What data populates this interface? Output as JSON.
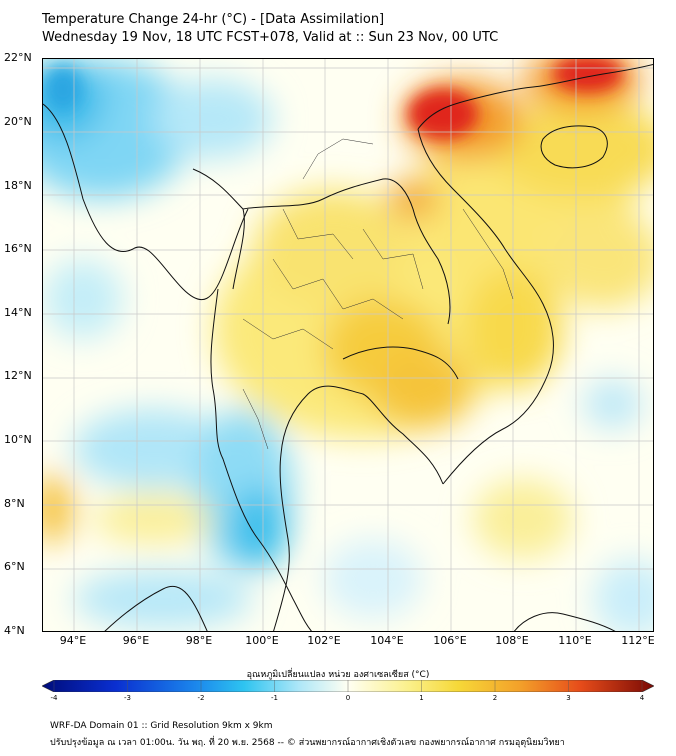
{
  "title_line1": "Temperature Change 24-hr (°C) - [Data Assimilation]",
  "title_line2": "Wednesday 19 Nov, 18 UTC FCST+078, Valid at :: Sun 23 Nov, 00 UTC",
  "map": {
    "lat_range": [
      4,
      22.3
    ],
    "lon_range": [
      93,
      112.5
    ],
    "lat_ticks": [
      "4°N",
      "6°N",
      "8°N",
      "10°N",
      "12°N",
      "14°N",
      "16°N",
      "18°N",
      "20°N",
      "22°N"
    ],
    "lon_ticks": [
      "94°E",
      "96°E",
      "98°E",
      "100°E",
      "102°E",
      "104°E",
      "106°E",
      "108°E",
      "110°E",
      "112°E"
    ],
    "grid": true,
    "colors": {
      "cold_deep": "#0b1f9c",
      "cold": "#2ec4f0",
      "neutral": "#fffff2",
      "warm": "#f6e34a",
      "hot": "#f28a1c",
      "hottest": "#d9140f"
    }
  },
  "colorbar": {
    "title": "อุณหภูมิเปลี่ยนแปลง หน่วย องศาเซลเซียส (°C)",
    "min": -4,
    "max": 4,
    "tick_labels": [
      "-4",
      "-3",
      "-2",
      "-1",
      "0",
      "1",
      "2",
      "3",
      "4"
    ]
  },
  "footer_line1": "WRF-DA Domain 01 :: Grid Resolution 9km x 9km",
  "footer_line2": "ปรับปรุงข้อมูล ณ เวลา 01:00น. วัน พฤ. ที่ 20 พ.ย. 2568 -- © ส่วนพยากรณ์อากาศเชิงตัวเลข กองพยากรณ์อากาศ กรมอุตุนิยมวิทยา"
}
